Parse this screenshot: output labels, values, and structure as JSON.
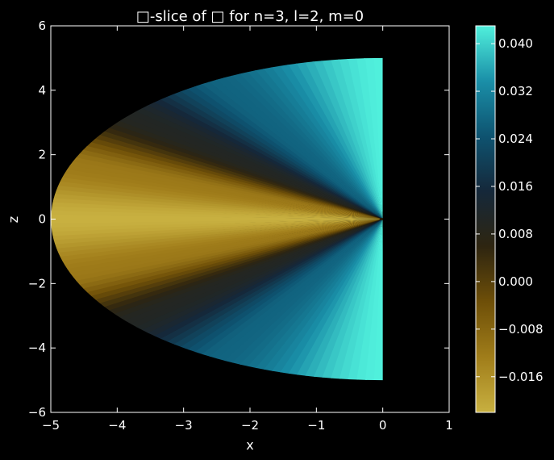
{
  "chart_data": {
    "type": "heatmap",
    "title": "□-slice of □ for n=3, l=2, m=0",
    "xlabel": "x",
    "ylabel": "z",
    "xlim": [
      -5,
      1
    ],
    "ylim": [
      -6,
      6
    ],
    "x_ticks": [
      -5,
      -4,
      -3,
      -2,
      -1,
      0,
      1
    ],
    "x_tick_labels": [
      "−5",
      "−4",
      "−3",
      "−2",
      "−1",
      "0",
      "1"
    ],
    "y_ticks": [
      -6,
      -4,
      -2,
      0,
      2,
      4,
      6
    ],
    "y_tick_labels": [
      "−6",
      "−4",
      "−2",
      "0",
      "2",
      "4",
      "6"
    ],
    "grid": false,
    "field": {
      "domain": "half-disk, x from -5 to 0, radius 5",
      "radius": 5,
      "equator_value": -0.022,
      "pole_value": 0.043,
      "value_samples": [
        {
          "angle_from_z_deg": 0,
          "value": 0.043
        },
        {
          "angle_from_z_deg": 30,
          "value": 0.027
        },
        {
          "angle_from_z_deg": 50,
          "value": 0.01
        },
        {
          "angle_from_z_deg": 70,
          "value": -0.012
        },
        {
          "angle_from_z_deg": 90,
          "value": -0.022
        }
      ]
    },
    "colorbar": {
      "min": -0.022,
      "max": 0.043,
      "ticks": [
        -0.016,
        -0.008,
        0.0,
        0.008,
        0.016,
        0.024,
        0.032,
        0.04
      ],
      "tick_labels": [
        "−0.016",
        "−0.008",
        "0.000",
        "0.008",
        "0.016",
        "0.024",
        "0.032",
        "0.040"
      ],
      "colors": [
        "#c8b040",
        "#a07d1a",
        "#6e4f08",
        "#2e2510",
        "#15283a",
        "#0e5370",
        "#1a8fa8",
        "#50f0dc"
      ]
    },
    "background": "#000000",
    "axes_color": "#ffffff"
  }
}
